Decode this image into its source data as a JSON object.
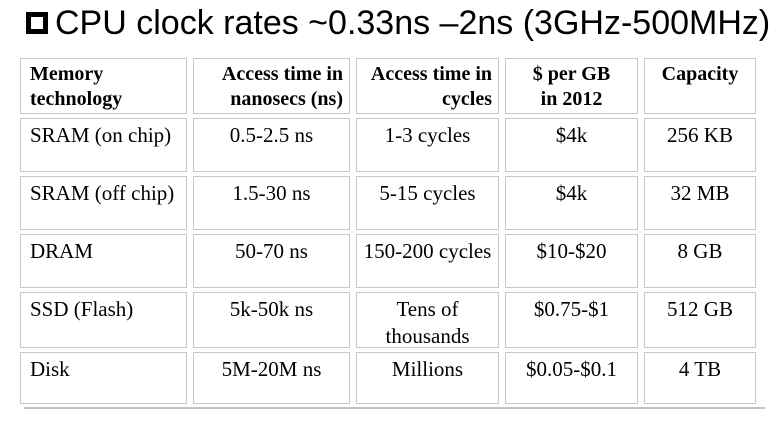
{
  "title": {
    "bullet_icon": "hollow-square-bullet",
    "text": "CPU clock rates ~0.33ns –2ns (3GHz-500MHz)"
  },
  "table": {
    "columns": [
      "Memory\ntechnology",
      "Access time in\nnanosecs (ns)",
      "Access time in\ncycles",
      "$ per GB\nin 2012",
      "Capacity"
    ],
    "rows": [
      [
        "SRAM (on chip)",
        "0.5-2.5 ns",
        "1-3 cycles",
        "$4k",
        "256 KB"
      ],
      [
        "SRAM (off chip)",
        "1.5-30 ns",
        "5-15 cycles",
        "$4k",
        "32 MB"
      ],
      [
        "DRAM",
        "50-70 ns",
        "150-200 cycles",
        "$10-$20",
        "8 GB"
      ],
      [
        "SSD (Flash)",
        "5k-50k ns",
        "Tens of\nthousands",
        "$0.75-$1",
        "512 GB"
      ],
      [
        "Disk",
        "5M-20M ns",
        "Millions",
        "$0.05-$0.1",
        "4 TB"
      ]
    ]
  },
  "colors": {
    "text": "#000000",
    "cell_border": "#c8c8c8",
    "table_shadow": "#c3c3c3",
    "background": "#ffffff"
  }
}
